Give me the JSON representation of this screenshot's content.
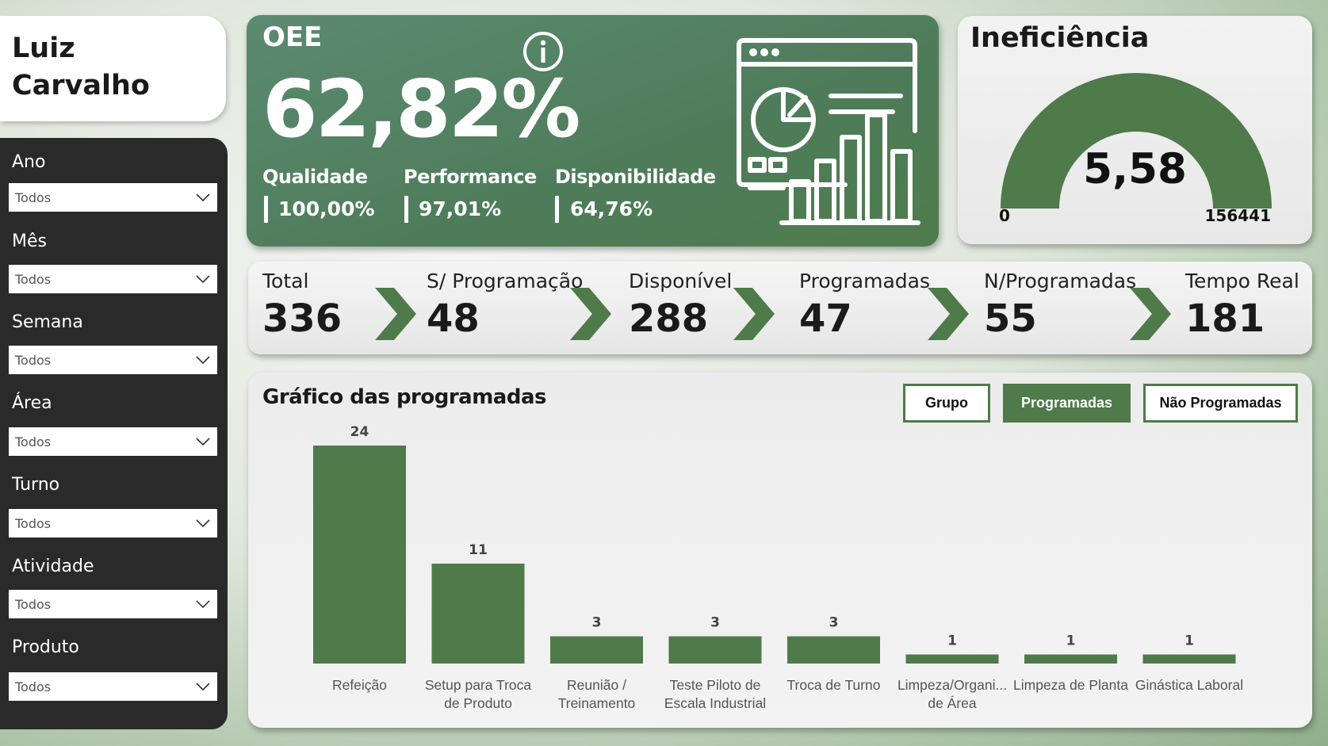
{
  "user": {
    "name_line1": "Luiz",
    "name_line2": "Carvalho"
  },
  "filters": [
    {
      "label": "Ano",
      "value": "Todos"
    },
    {
      "label": "Mês",
      "value": "Todos"
    },
    {
      "label": "Semana",
      "value": "Todos"
    },
    {
      "label": "Área",
      "value": "Todos"
    },
    {
      "label": "Turno",
      "value": "Todos"
    },
    {
      "label": "Atividade",
      "value": "Todos"
    },
    {
      "label": "Produto",
      "value": "Todos"
    }
  ],
  "oee": {
    "title": "OEE",
    "value": "62,82%",
    "kpis": [
      {
        "label": "Qualidade",
        "value": "100,00%"
      },
      {
        "label": "Performance",
        "value": "97,01%"
      },
      {
        "label": "Disponibilidade",
        "value": "64,76%"
      }
    ]
  },
  "inefficiency": {
    "title": "Ineficiência",
    "value": "5,58",
    "min": "0",
    "max": "156441"
  },
  "flow": [
    {
      "label": "Total",
      "value": "336"
    },
    {
      "label": "S/ Programação",
      "value": "48"
    },
    {
      "label": "Disponível",
      "value": "288"
    },
    {
      "label": "Programadas",
      "value": "47"
    },
    {
      "label": "N/Programadas",
      "value": "55"
    },
    {
      "label": "Tempo Real",
      "value": "181"
    }
  ],
  "chart_section": {
    "title": "Gráfico das programadas",
    "toggles": [
      {
        "label": "Grupo",
        "active": false
      },
      {
        "label": "Programadas",
        "active": true
      },
      {
        "label": "Não Programadas",
        "active": false
      }
    ]
  },
  "colors": {
    "accent": "#4f7a4a",
    "panel_dark": "#2a2a2a"
  },
  "chart_data": {
    "type": "bar",
    "title": "Gráfico das programadas",
    "categories": [
      [
        "Refeição"
      ],
      [
        "Setup para Troca",
        "de Produto"
      ],
      [
        "Reunião /",
        "Treinamento"
      ],
      [
        "Teste Piloto de",
        "Escala Industrial"
      ],
      [
        "Troca de Turno"
      ],
      [
        "Limpeza/Organi...",
        "de Área"
      ],
      [
        "Limpeza de Planta"
      ],
      [
        "Ginástica Laboral"
      ]
    ],
    "values": [
      24,
      11,
      3,
      3,
      3,
      1,
      1,
      1
    ],
    "data_labels": [
      "24",
      "11",
      "3",
      "3",
      "3",
      "1",
      "1",
      "1"
    ],
    "grid": false,
    "color": "#4f7a4a"
  }
}
